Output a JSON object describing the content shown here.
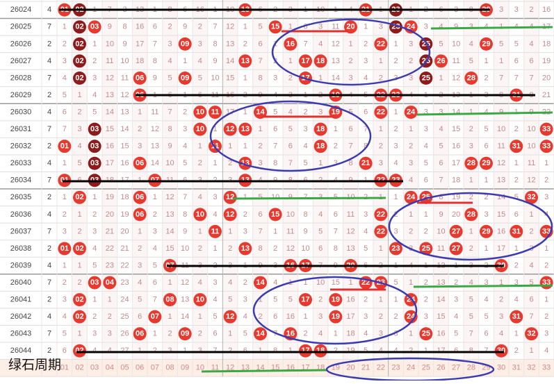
{
  "colors": {
    "red": "#e8392f",
    "dark": "#8e1b1b"
  },
  "rows": [
    {
      "period": 26024,
      "count": 4,
      "cells": [
        {
          "text": "01",
          "ball": "red"
        },
        {
          "text": "02",
          "ball": "dark"
        },
        1,
        7,
        3,
        13,
        1,
        8,
        6,
        16,
        1,
        10,
        {
          "text": "13",
          "ball": "red"
        },
        6,
        2,
        3,
        1,
        10,
        1,
        4,
        {
          "text": "21",
          "ball": "red"
        },
        1,
        {
          "text": "23",
          "ball": "dark"
        },
        1,
        2,
        6,
        3,
        8,
        {
          "text": "29",
          "ball": "red"
        },
        3,
        3,
        2,
        16
      ]
    },
    {
      "period": 26025,
      "count": 7,
      "cells": [
        1,
        {
          "text": "02",
          "ball": "dark"
        },
        {
          "text": "03",
          "ball": "red"
        },
        9,
        8,
        16,
        6,
        2,
        9,
        2,
        7,
        12,
        1,
        5,
        {
          "text": "15",
          "ball": "red"
        },
        1,
        6,
        3,
        11,
        {
          "text": "20",
          "ball": "red"
        },
        1,
        3,
        {
          "text": "23",
          "ball": "dark"
        },
        {
          "text": "24",
          "ball": "red"
        },
        3,
        4,
        9,
        3,
        4,
        1,
        4,
        4,
        17
      ]
    },
    {
      "period": 26026,
      "count": 2,
      "cells": [
        2,
        {
          "text": "02",
          "ball": "dark"
        },
        1,
        10,
        9,
        17,
        7,
        3,
        {
          "text": "09",
          "ball": "red"
        },
        3,
        8,
        13,
        2,
        6,
        1,
        {
          "text": "16",
          "ball": "red"
        },
        7,
        4,
        12,
        1,
        2,
        {
          "text": "22",
          "ball": "red"
        },
        1,
        3,
        {
          "text": "25",
          "ball": "dark"
        },
        5,
        10,
        4,
        {
          "text": "29",
          "ball": "red"
        },
        5,
        5,
        4,
        18
      ]
    },
    {
      "period": 26027,
      "count": 4,
      "cells": [
        3,
        {
          "text": "02",
          "ball": "dark"
        },
        2,
        11,
        10,
        18,
        8,
        4,
        1,
        4,
        9,
        14,
        {
          "text": "13",
          "ball": "red"
        },
        7,
        2,
        1,
        {
          "text": "17",
          "ball": "red"
        },
        {
          "text": "18",
          "ball": "red"
        },
        13,
        2,
        3,
        1,
        2,
        2,
        {
          "text": "25",
          "ball": "dark"
        },
        {
          "text": "26",
          "ball": "red"
        },
        11,
        5,
        1,
        1,
        6,
        6,
        19
      ]
    },
    {
      "period": 26028,
      "count": 7,
      "cells": [
        4,
        {
          "text": "02",
          "ball": "dark"
        },
        3,
        12,
        11,
        {
          "text": "06",
          "ball": "red"
        },
        9,
        5,
        {
          "text": "09",
          "ball": "red"
        },
        5,
        10,
        15,
        1,
        8,
        3,
        2,
        {
          "text": "17",
          "ball": "red"
        },
        1,
        14,
        3,
        4,
        2,
        3,
        3,
        {
          "text": "25",
          "ball": "dark"
        },
        1,
        12,
        {
          "text": "28",
          "ball": "red"
        },
        2,
        7,
        7,
        7,
        20
      ]
    },
    {
      "period": 26029,
      "count": 2,
      "cells": [
        5,
        1,
        4,
        13,
        12,
        {
          "text": "06",
          "ball": "red"
        },
        1,
        6,
        1,
        6,
        11,
        16,
        2,
        9,
        4,
        3,
        1,
        2,
        {
          "text": "19",
          "ball": "red"
        },
        4,
        5,
        {
          "text": "22",
          "ball": "red"
        },
        {
          "text": "23",
          "ball": "red"
        },
        4,
        1,
        2,
        13,
        1,
        3,
        8,
        {
          "text": "31",
          "ball": "red"
        },
        8,
        21
      ]
    },
    {
      "period": 26030,
      "count": 4,
      "cells": [
        6,
        2,
        5,
        14,
        13,
        1,
        11,
        7,
        2,
        {
          "text": "10",
          "ball": "red"
        },
        {
          "text": "11",
          "ball": "red"
        },
        17,
        1,
        {
          "text": "14",
          "ball": "red"
        },
        5,
        4,
        2,
        3,
        {
          "text": "19",
          "ball": "red"
        },
        5,
        6,
        {
          "text": "22",
          "ball": "red"
        },
        1,
        {
          "text": "24",
          "ball": "red"
        },
        3,
        3,
        14,
        1,
        4,
        9,
        1,
        9,
        22
      ]
    },
    {
      "period": 26031,
      "count": 7,
      "cells": [
        7,
        3,
        {
          "text": "03",
          "ball": "dark"
        },
        15,
        14,
        2,
        12,
        8,
        3,
        {
          "text": "10",
          "ball": "red"
        },
        1,
        {
          "text": "12",
          "ball": "red"
        },
        {
          "text": "13",
          "ball": "red"
        },
        1,
        6,
        5,
        3,
        {
          "text": "18",
          "ball": "red"
        },
        1,
        6,
        7,
        1,
        2,
        1,
        3,
        4,
        15,
        2,
        5,
        10,
        2,
        10,
        {
          "text": "33",
          "ball": "red"
        }
      ]
    },
    {
      "period": 26032,
      "count": 2,
      "cells": [
        {
          "text": "01",
          "ball": "red"
        },
        4,
        {
          "text": "03",
          "ball": "dark"
        },
        16,
        15,
        3,
        13,
        9,
        4,
        1,
        {
          "text": "11",
          "ball": "red"
        },
        1,
        1,
        2,
        7,
        6,
        4,
        {
          "text": "18",
          "ball": "red"
        },
        2,
        7,
        8,
        2,
        3,
        2,
        4,
        5,
        16,
        3,
        6,
        11,
        {
          "text": "31",
          "ball": "red"
        },
        10,
        {
          "text": "33",
          "ball": "red"
        }
      ]
    },
    {
      "period": 26033,
      "count": 4,
      "cells": [
        1,
        5,
        {
          "text": "03",
          "ball": "dark"
        },
        17,
        16,
        {
          "text": "06",
          "ball": "red"
        },
        14,
        10,
        5,
        2,
        1,
        2,
        {
          "text": "13",
          "ball": "red"
        },
        3,
        8,
        7,
        5,
        1,
        3,
        8,
        {
          "text": "21",
          "ball": "red"
        },
        3,
        4,
        3,
        5,
        6,
        17,
        {
          "text": "28",
          "ball": "red"
        },
        {
          "text": "29",
          "ball": "red"
        },
        12,
        1,
        11,
        1
      ]
    },
    {
      "period": 26034,
      "count": 7,
      "cells": [
        {
          "text": "01",
          "ball": "red"
        },
        6,
        {
          "text": "03",
          "ball": "dark"
        },
        18,
        17,
        1,
        {
          "text": "07",
          "ball": "red"
        },
        11,
        6,
        3,
        2,
        3,
        {
          "text": "13",
          "ball": "red"
        },
        4,
        9,
        8,
        6,
        2,
        4,
        9,
        1,
        {
          "text": "22",
          "ball": "red"
        },
        {
          "text": "23",
          "ball": "red"
        },
        4,
        6,
        7,
        18,
        1,
        1,
        13,
        2,
        12,
        2
      ]
    },
    {
      "period": 26035,
      "count": 2,
      "cells": [
        1,
        {
          "text": "02",
          "ball": "red"
        },
        1,
        19,
        18,
        {
          "text": "06",
          "ball": "red"
        },
        1,
        12,
        7,
        4,
        3,
        {
          "text": "12",
          "ball": "red"
        },
        1,
        5,
        10,
        9,
        7,
        3,
        5,
        10,
        2,
        1,
        1,
        {
          "text": "24",
          "ball": "red"
        },
        {
          "text": "25",
          "ball": "red"
        },
        8,
        19,
        2,
        2,
        14,
        5,
        {
          "text": "32",
          "ball": "red"
        },
        3
      ]
    },
    {
      "period": 26036,
      "count": 4,
      "cells": [
        2,
        1,
        2,
        20,
        19,
        {
          "text": "06",
          "ball": "red"
        },
        2,
        13,
        8,
        {
          "text": "10",
          "ball": "red"
        },
        4,
        {
          "text": "12",
          "ball": "red"
        },
        2,
        6,
        {
          "text": "15",
          "ball": "red"
        },
        10,
        8,
        4,
        6,
        11,
        3,
        {
          "text": "22",
          "ball": "red"
        },
        2,
        1,
        1,
        9,
        20,
        {
          "text": "28",
          "ball": "red"
        },
        3,
        15,
        6,
        1,
        4
      ]
    },
    {
      "period": 26037,
      "count": 7,
      "cells": [
        3,
        2,
        3,
        21,
        20,
        1,
        3,
        14,
        9,
        1,
        {
          "text": "11",
          "ball": "red"
        },
        1,
        3,
        7,
        1,
        11,
        9,
        5,
        7,
        12,
        4,
        {
          "text": "22",
          "ball": "red"
        },
        3,
        2,
        2,
        10,
        {
          "text": "27",
          "ball": "red"
        },
        1,
        {
          "text": "29",
          "ball": "red"
        },
        16,
        {
          "text": "31",
          "ball": "red"
        },
        2,
        {
          "text": "33",
          "ball": "red"
        }
      ]
    },
    {
      "period": 26038,
      "count": 2,
      "cells": [
        {
          "text": "01",
          "ball": "red"
        },
        {
          "text": "02",
          "ball": "red"
        },
        4,
        22,
        21,
        2,
        4,
        15,
        10,
        2,
        1,
        2,
        {
          "text": "13",
          "ball": "red"
        },
        8,
        2,
        12,
        10,
        6,
        8,
        13,
        5,
        1,
        {
          "text": "23",
          "ball": "red"
        },
        3,
        {
          "text": "25",
          "ball": "red"
        },
        11,
        {
          "text": "27",
          "ball": "red"
        },
        2,
        1,
        17,
        1,
        3,
        1
      ]
    },
    {
      "period": 26039,
      "count": 4,
      "cells": [
        1,
        1,
        5,
        23,
        22,
        3,
        5,
        {
          "text": "07",
          "ball": "red"
        },
        11,
        3,
        2,
        3,
        1,
        9,
        3,
        {
          "text": "16",
          "ball": "red"
        },
        {
          "text": "17",
          "ball": "red"
        },
        7,
        9,
        {
          "text": "20",
          "ball": "red"
        },
        6,
        2,
        1,
        4,
        1,
        12,
        1,
        3,
        2,
        {
          "text": "30",
          "ball": "red"
        },
        2,
        4,
        2
      ]
    },
    {
      "period": 26040,
      "count": 7,
      "cells": [
        2,
        2,
        {
          "text": "03",
          "ball": "red"
        },
        {
          "text": "04",
          "ball": "red"
        },
        23,
        4,
        6,
        1,
        12,
        4,
        3,
        4,
        2,
        {
          "text": "14",
          "ball": "red"
        },
        4,
        1,
        1,
        10,
        15,
        1,
        {
          "text": "22",
          "ball": "red"
        },
        {
          "text": "23",
          "ball": "red"
        },
        5,
        1,
        2,
        13,
        2,
        4,
        3,
        1,
        3,
        5,
        {
          "text": "33",
          "ball": "red"
        }
      ]
    },
    {
      "period": 26041,
      "count": 2,
      "cells": [
        3,
        {
          "text": "02",
          "ball": "red"
        },
        1,
        1,
        24,
        5,
        7,
        {
          "text": "08",
          "ball": "red"
        },
        13,
        {
          "text": "10",
          "ball": "red"
        },
        4,
        5,
        3,
        1,
        5,
        5,
        {
          "text": "17",
          "ball": "red"
        },
        2,
        {
          "text": "19",
          "ball": "red"
        },
        16,
        2,
        1,
        1,
        {
          "text": "24",
          "ball": "red"
        },
        2,
        14,
        3,
        5,
        4,
        2,
        4,
        6,
        1
      ]
    },
    {
      "period": 26042,
      "count": 4,
      "cells": [
        4,
        {
          "text": "02",
          "ball": "red"
        },
        2,
        2,
        25,
        6,
        {
          "text": "07",
          "ball": "red"
        },
        1,
        14,
        1,
        5,
        {
          "text": "12",
          "ball": "red"
        },
        4,
        2,
        6,
        16,
        1,
        3,
        {
          "text": "19",
          "ball": "red"
        },
        17,
        3,
        2,
        2,
        {
          "text": "24",
          "ball": "red"
        },
        3,
        15,
        4,
        5,
        5,
        3,
        {
          "text": "31",
          "ball": "red"
        },
        7,
        2
      ]
    },
    {
      "period": 26043,
      "count": 7,
      "cells": [
        5,
        1,
        3,
        3,
        26,
        {
          "text": "06",
          "ball": "red"
        },
        1,
        2,
        {
          "text": "09",
          "ball": "red"
        },
        2,
        6,
        1,
        5,
        {
          "text": "14",
          "ball": "red"
        },
        7,
        {
          "text": "16",
          "ball": "red"
        },
        2,
        4,
        1,
        18,
        4,
        3,
        3,
        1,
        {
          "text": "25",
          "ball": "red"
        },
        16,
        5,
        7,
        6,
        4,
        1,
        {
          "text": "32",
          "ball": "red"
        },
        3
      ]
    },
    {
      "period": 26044,
      "count": 2,
      "cells": [
        6,
        {
          "text": "02",
          "ball": "red"
        },
        4,
        4,
        27,
        1,
        2,
        3,
        1,
        3,
        7,
        2,
        6,
        1,
        8,
        1,
        {
          "text": "17",
          "ball": "red"
        },
        {
          "text": "18",
          "ball": "red"
        },
        2,
        19,
        5,
        4,
        4,
        2,
        1,
        17,
        6,
        8,
        7,
        {
          "text": "30",
          "ball": "red"
        },
        2,
        1,
        4
      ]
    }
  ],
  "footer": [
    "01",
    "02",
    "03",
    "04",
    "05",
    "06",
    "07",
    "08",
    "09",
    "10",
    "11",
    "12",
    "13",
    "14",
    "15",
    "16",
    "17",
    "18",
    "19",
    "20",
    "21",
    "22",
    "23",
    "24",
    "25",
    "26",
    "27",
    "28",
    "29",
    "30",
    "31",
    "32",
    "33"
  ],
  "watermark": "绿石周期"
}
